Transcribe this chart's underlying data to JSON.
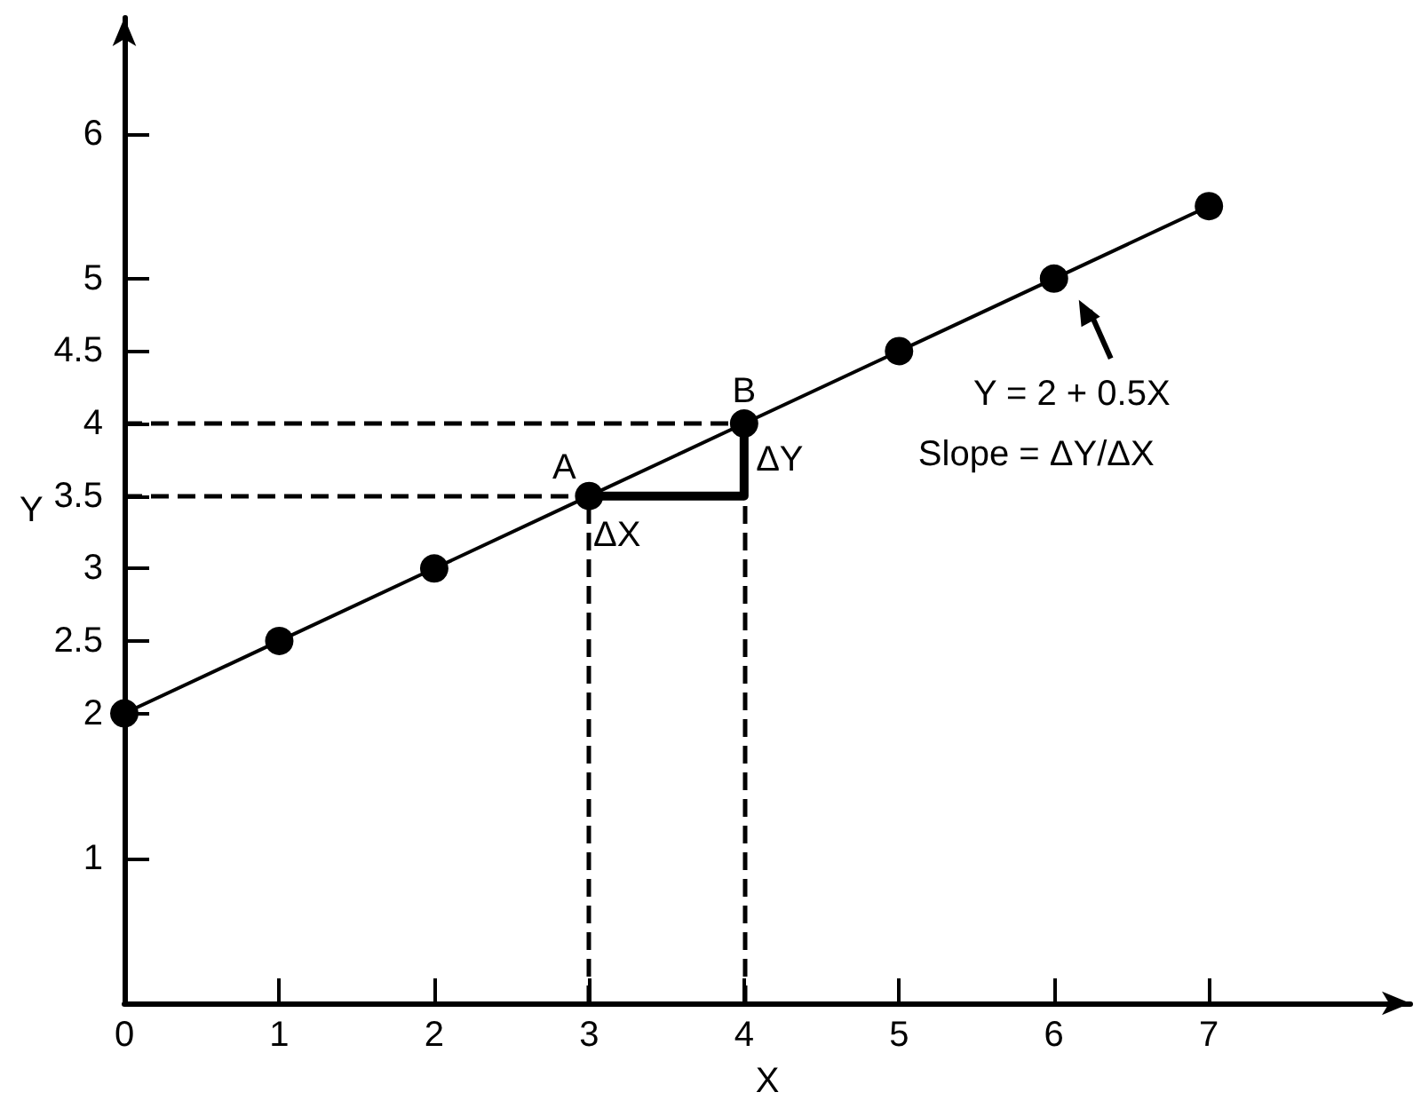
{
  "chart_data": {
    "type": "line",
    "xlabel": "X",
    "ylabel": "Y",
    "series": [
      {
        "color": "#000000",
        "x": [
          0,
          1,
          2,
          3,
          4,
          5,
          6,
          7
        ],
        "values": [
          2,
          2.5,
          3,
          3.5,
          4,
          4.5,
          5,
          5.5
        ]
      },
      {
        "color": "#000000",
        "x": [
          3,
          4,
          4
        ],
        "values": [
          3.5,
          3.5,
          4
        ],
        "marker": "none"
      }
    ],
    "xlim": [
      0,
      8.3
    ],
    "ylim": [
      0,
      6.8
    ],
    "xticks": [
      0,
      1,
      2,
      3,
      4,
      5,
      6,
      7
    ],
    "yticks": [
      1,
      2,
      2.5,
      3,
      3.5,
      4,
      4.5,
      5,
      6
    ],
    "ref_lines": [
      {
        "axis": "x",
        "value": 3,
        "line_style": "dashed",
        "color": "#000000"
      },
      {
        "axis": "x",
        "value": 4,
        "line_style": "dashed",
        "color": "#000000"
      },
      {
        "axis": "y",
        "value": 3.5,
        "line_style": "dashed",
        "color": "#000000"
      },
      {
        "axis": "y",
        "value": 4,
        "line_style": "dashed",
        "color": "#000000"
      }
    ],
    "annotations": [
      {
        "text": "A",
        "x": 3,
        "y": 3.5
      },
      {
        "text": "B",
        "x": 4,
        "y": 4
      },
      {
        "text": "ΔX",
        "x": 3.5,
        "y": 3.5
      },
      {
        "text": "ΔY",
        "x": 4,
        "y": 3.75
      },
      {
        "text": "Y = 2 + 0.5X",
        "x": 6,
        "y": 5
      },
      "Slope = ΔY/ΔX"
    ],
    "grid": false,
    "marker": "circle",
    "line_style": "solid"
  }
}
